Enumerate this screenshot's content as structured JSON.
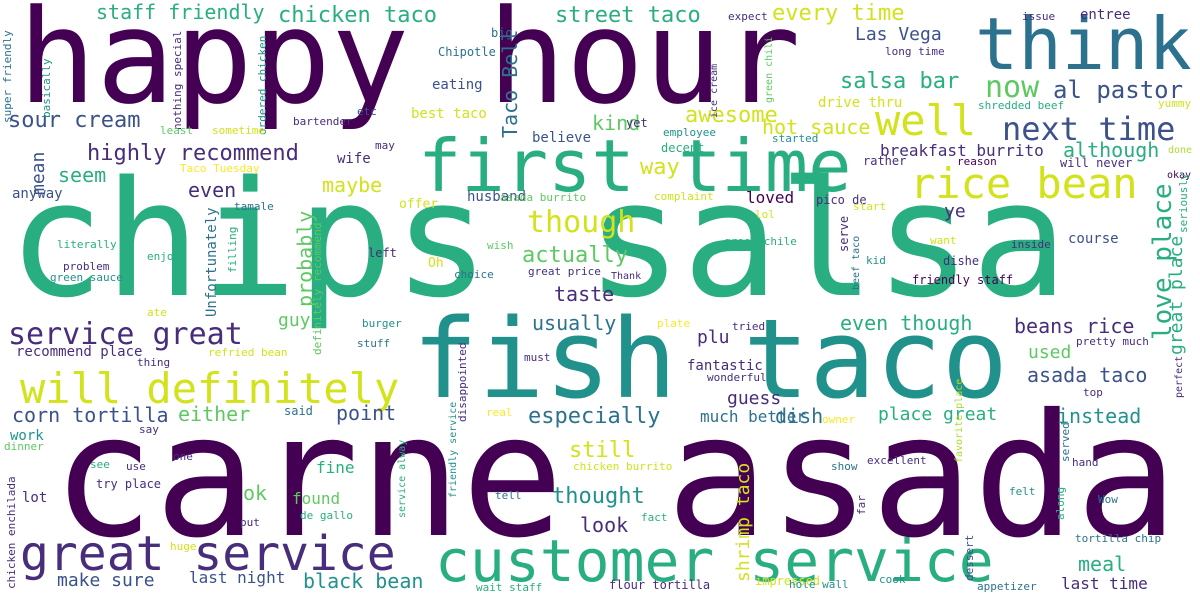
{
  "palette": {
    "deep_purple": "#440154",
    "indigo": "#472d7b",
    "slate_blue": "#3b528b",
    "steel_blue": "#2c728e",
    "teal": "#21918c",
    "sea_green": "#28ae80",
    "green": "#5ec962",
    "lime": "#addc30",
    "yellow_green": "#d2e21b",
    "yellow": "#fde725"
  },
  "words": [
    {
      "text": "carne asada"
    },
    {
      "text": "chips salsa"
    },
    {
      "text": "happy hour"
    },
    {
      "text": "fish taco"
    },
    {
      "text": "think"
    },
    {
      "text": "first time"
    },
    {
      "text": "customer service"
    },
    {
      "text": "great service"
    },
    {
      "text": "will definitely"
    },
    {
      "text": "rice bean"
    },
    {
      "text": "well"
    },
    {
      "text": "love place"
    },
    {
      "text": "next time"
    },
    {
      "text": "service great"
    },
    {
      "text": "now"
    },
    {
      "text": "though"
    },
    {
      "text": "al pastor"
    },
    {
      "text": "chicken taco"
    },
    {
      "text": "street taco"
    },
    {
      "text": "every time"
    },
    {
      "text": "staff friendly"
    },
    {
      "text": "Las Vega"
    },
    {
      "text": "salsa bar"
    },
    {
      "text": "highly recommend"
    },
    {
      "text": "sour cream"
    },
    {
      "text": "awesome"
    },
    {
      "text": "hot sauce"
    },
    {
      "text": "kind"
    },
    {
      "text": "Taco Bell"
    },
    {
      "text": "although"
    },
    {
      "text": "breakfast burrito"
    },
    {
      "text": "great place"
    },
    {
      "text": "maybe"
    },
    {
      "text": "even"
    },
    {
      "text": "seem"
    },
    {
      "text": "mean"
    },
    {
      "text": "actually"
    },
    {
      "text": "way"
    },
    {
      "text": "taste"
    },
    {
      "text": "probably"
    },
    {
      "text": "usually"
    },
    {
      "text": "even though"
    },
    {
      "text": "beans rice"
    },
    {
      "text": "asada taco"
    },
    {
      "text": "used"
    },
    {
      "text": "plu"
    },
    {
      "text": "guy"
    },
    {
      "text": "corn tortilla"
    },
    {
      "text": "either"
    },
    {
      "text": "point"
    },
    {
      "text": "especially"
    },
    {
      "text": "dish"
    },
    {
      "text": "place great"
    },
    {
      "text": "instead"
    },
    {
      "text": "guess"
    },
    {
      "text": "shrimp taco"
    },
    {
      "text": "still"
    },
    {
      "text": "thought"
    },
    {
      "text": "look"
    },
    {
      "text": "black bean"
    },
    {
      "text": "meal"
    },
    {
      "text": "make sure"
    },
    {
      "text": "last night"
    },
    {
      "text": "last time"
    },
    {
      "text": "ok"
    },
    {
      "text": "fine"
    },
    {
      "text": "found"
    },
    {
      "text": "recommend place"
    },
    {
      "text": "ye"
    },
    {
      "text": "course"
    },
    {
      "text": "loved"
    },
    {
      "text": "fantastic"
    },
    {
      "text": "much better"
    },
    {
      "text": "believe"
    },
    {
      "text": "husband"
    },
    {
      "text": "wife"
    },
    {
      "text": "anyway"
    },
    {
      "text": "Unfortunately"
    },
    {
      "text": "definitely recommend"
    },
    {
      "text": "work"
    },
    {
      "text": "lot"
    },
    {
      "text": "try place"
    },
    {
      "text": "friendly staff"
    },
    {
      "text": "eating"
    },
    {
      "text": "best taco"
    },
    {
      "text": "Chipotle"
    },
    {
      "text": "big"
    },
    {
      "text": "expect"
    },
    {
      "text": "issue"
    },
    {
      "text": "entree"
    },
    {
      "text": "long time"
    },
    {
      "text": "green chili"
    },
    {
      "text": "ice cream"
    },
    {
      "text": "nothing special"
    },
    {
      "text": "super friendly"
    },
    {
      "text": "basically"
    },
    {
      "text": "ordered chicken"
    },
    {
      "text": "etc"
    },
    {
      "text": "bartender"
    },
    {
      "text": "least"
    },
    {
      "text": "sometime"
    },
    {
      "text": "may"
    },
    {
      "text": "drive thru"
    },
    {
      "text": "yet"
    },
    {
      "text": "employee"
    },
    {
      "text": "decent"
    },
    {
      "text": "started"
    },
    {
      "text": "shredded beef"
    },
    {
      "text": "yummy"
    },
    {
      "text": "Taco Tuesday"
    },
    {
      "text": "rather"
    },
    {
      "text": "reason"
    },
    {
      "text": "will never"
    },
    {
      "text": "done"
    },
    {
      "text": "okay"
    },
    {
      "text": "asada burrito"
    },
    {
      "text": "complaint"
    },
    {
      "text": "pico de"
    },
    {
      "text": "start"
    },
    {
      "text": "tamale"
    },
    {
      "text": "offer"
    },
    {
      "text": "lol"
    },
    {
      "text": "want"
    },
    {
      "text": "seriously"
    },
    {
      "text": "literally"
    },
    {
      "text": "wish"
    },
    {
      "text": "green chile"
    },
    {
      "text": "serve"
    },
    {
      "text": "beef taco"
    },
    {
      "text": "inside"
    },
    {
      "text": "filling"
    },
    {
      "text": "enjoy"
    },
    {
      "text": "left"
    },
    {
      "text": "kid"
    },
    {
      "text": "dishe"
    },
    {
      "text": "problem"
    },
    {
      "text": "green sauce"
    },
    {
      "text": "Oh"
    },
    {
      "text": "choice"
    },
    {
      "text": "great price"
    },
    {
      "text": "Thank"
    },
    {
      "text": "ate"
    },
    {
      "text": "plate"
    },
    {
      "text": "tried"
    },
    {
      "text": "burger"
    },
    {
      "text": "stuff"
    },
    {
      "text": "refried bean"
    },
    {
      "text": "thing"
    },
    {
      "text": "must"
    },
    {
      "text": "pretty much"
    },
    {
      "text": "wonderful"
    },
    {
      "text": "perfect"
    },
    {
      "text": "top"
    },
    {
      "text": "disappointed"
    },
    {
      "text": "said"
    },
    {
      "text": "real"
    },
    {
      "text": "owner"
    },
    {
      "text": "say"
    },
    {
      "text": "dinner"
    },
    {
      "text": "one"
    },
    {
      "text": "favorite place"
    },
    {
      "text": "served"
    },
    {
      "text": "see"
    },
    {
      "text": "use"
    },
    {
      "text": "chicken burrito"
    },
    {
      "text": "show"
    },
    {
      "text": "excellent"
    },
    {
      "text": "hand"
    },
    {
      "text": "friendly service"
    },
    {
      "text": "service alway"
    },
    {
      "text": "tell"
    },
    {
      "text": "far"
    },
    {
      "text": "felt"
    },
    {
      "text": "along"
    },
    {
      "text": "Wow"
    },
    {
      "text": "chicken enchilada"
    },
    {
      "text": "put"
    },
    {
      "text": "de gallo"
    },
    {
      "text": "fact"
    },
    {
      "text": "dessert"
    },
    {
      "text": "tortilla chip"
    },
    {
      "text": "huge"
    },
    {
      "text": "wait staff"
    },
    {
      "text": "flour tortilla"
    },
    {
      "text": "impressed"
    },
    {
      "text": "hole wall"
    },
    {
      "text": "cook"
    },
    {
      "text": "appetizer"
    }
  ]
}
